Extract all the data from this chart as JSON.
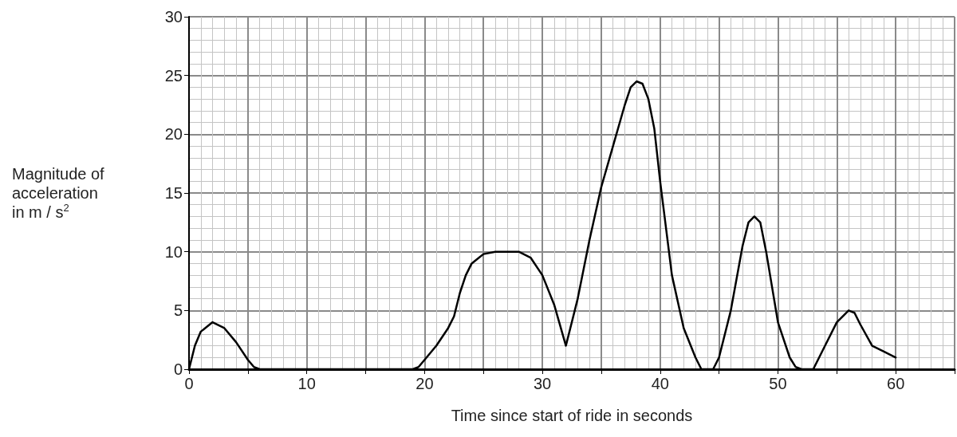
{
  "chart_data": {
    "type": "line",
    "xlabel": "Time since start of ride in seconds",
    "ylabel": "Magnitude of\nacceleration\nin m / s$^{2}$",
    "x": [
      0,
      0.5,
      1,
      2,
      3,
      4,
      5,
      5.5,
      6,
      19,
      19.5,
      20,
      21,
      22,
      22.5,
      23,
      23.5,
      24,
      24.5,
      25,
      26,
      28,
      29,
      30,
      31,
      32,
      33,
      34,
      35,
      36,
      37,
      37.5,
      38,
      38.5,
      39,
      39.5,
      40,
      41,
      42,
      43,
      43.5,
      44.5,
      45,
      46,
      47,
      47.5,
      48,
      48.5,
      49,
      50,
      51,
      51.5,
      52,
      53,
      54,
      55,
      56,
      56.5,
      57,
      58,
      59,
      60
    ],
    "series": [
      {
        "color": "#000000",
        "values": [
          0,
          2,
          3.2,
          4,
          3.5,
          2.3,
          0.8,
          0.2,
          0,
          0,
          0.2,
          0.8,
          2,
          3.5,
          4.5,
          6.5,
          8,
          9,
          9.4,
          9.8,
          10,
          10,
          9.5,
          8,
          5.5,
          2,
          6,
          11,
          15.5,
          19,
          22.5,
          24,
          24.5,
          24.3,
          23,
          20.5,
          16,
          8,
          3.5,
          1,
          0,
          0,
          1,
          5,
          10.5,
          12.5,
          13,
          12.5,
          10,
          4,
          1,
          0.2,
          0,
          0,
          2,
          4,
          5,
          4.8,
          3.8,
          2,
          1.5,
          1
        ]
      }
    ],
    "xlim": [
      0,
      65
    ],
    "xticks": [
      0,
      {
        "value": 5,
        "label": null
      },
      10,
      {
        "value": 15,
        "label": null
      },
      20,
      {
        "value": 25,
        "label": null
      },
      30,
      {
        "value": 35,
        "label": null
      },
      40,
      {
        "value": 45,
        "label": null
      },
      50,
      {
        "value": 55,
        "label": null
      },
      60,
      {
        "value": 65,
        "label": null
      }
    ],
    "ylim": [
      0,
      30
    ],
    "yticks": [
      0,
      5,
      10,
      15,
      20,
      25,
      30
    ],
    "grid": true,
    "marker": "none",
    "line_style": "solid"
  }
}
